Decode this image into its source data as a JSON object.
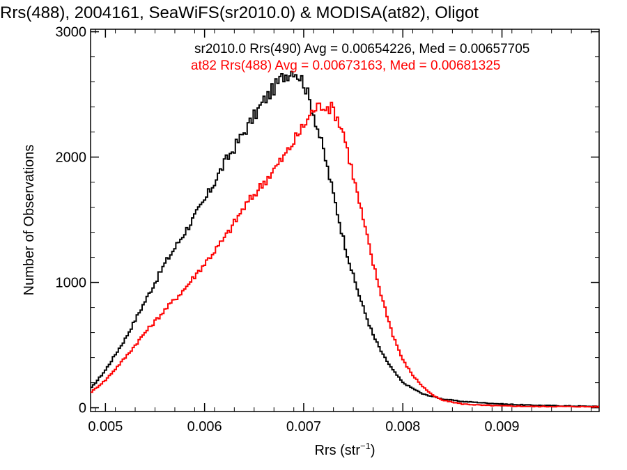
{
  "chart_data": {
    "type": "line",
    "style": "step-histogram",
    "title": "Rrs(488), 2004161, SeaWiFS(sr2010.0) & MODISA(at82), Oligot",
    "xlabel": "Rrs (str",
    "xlabel_sup": "−1",
    "xlabel_close": ")",
    "ylabel": "Number of Observations",
    "xlim": [
      0.00485,
      0.00998
    ],
    "ylim": [
      -30,
      3020
    ],
    "x_ticks": [
      0.005,
      0.006,
      0.007,
      0.008,
      0.009
    ],
    "x_tick_labels": [
      "0.005",
      "0.006",
      "0.007",
      "0.008",
      "0.009"
    ],
    "y_ticks": [
      0,
      1000,
      2000,
      3000
    ],
    "y_tick_labels": [
      "0",
      "1000",
      "2000",
      "3000"
    ],
    "grid": false,
    "legend_position": "top-right",
    "series": [
      {
        "name": "sr2010.0 Rrs(490) Avg = 0.00654226, Med = 0.00657705",
        "color": "#000000",
        "x": [
          0.00485,
          0.005,
          0.0052,
          0.0054,
          0.0056,
          0.0058,
          0.006,
          0.0062,
          0.0064,
          0.0066,
          0.0068,
          0.0069,
          0.007,
          0.0071,
          0.0072,
          0.0073,
          0.0074,
          0.0075,
          0.0076,
          0.0077,
          0.0078,
          0.0079,
          0.008,
          0.0082,
          0.0084,
          0.0086,
          0.0088,
          0.009,
          0.0093,
          0.0096,
          0.01
        ],
        "y": [
          150,
          300,
          550,
          850,
          1150,
          1400,
          1650,
          1950,
          2200,
          2450,
          2650,
          2700,
          2600,
          2350,
          2050,
          1700,
          1350,
          1050,
          800,
          580,
          420,
          300,
          200,
          110,
          70,
          50,
          40,
          30,
          20,
          15,
          10
        ]
      },
      {
        "name": "at82 Rrs(488) Avg = 0.00673163, Med = 0.00681325",
        "color": "#ff0000",
        "x": [
          0.00485,
          0.005,
          0.0052,
          0.0054,
          0.0056,
          0.0058,
          0.006,
          0.0062,
          0.0064,
          0.0066,
          0.0068,
          0.007,
          0.0071,
          0.0072,
          0.0073,
          0.0074,
          0.0075,
          0.0076,
          0.0077,
          0.0078,
          0.0079,
          0.008,
          0.0081,
          0.0082,
          0.0083,
          0.0084,
          0.0086,
          0.0088,
          0.009,
          0.0093,
          0.0096,
          0.01
        ],
        "y": [
          120,
          220,
          400,
          600,
          780,
          950,
          1150,
          1350,
          1600,
          1800,
          2000,
          2250,
          2380,
          2420,
          2380,
          2200,
          1850,
          1500,
          1150,
          850,
          580,
          380,
          260,
          170,
          100,
          60,
          30,
          20,
          15,
          10,
          10,
          8
        ]
      }
    ]
  }
}
